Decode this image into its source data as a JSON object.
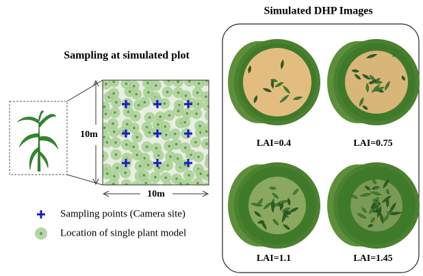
{
  "left": {
    "title": "Sampling at simulated plot",
    "height_label": "10m",
    "width_label": "10m",
    "legend": [
      "Sampling points (Camera site)",
      "Location of single plant model"
    ]
  },
  "right": {
    "title": "Simulated DHP Images",
    "images": [
      "LAI=0.4",
      "LAI=0.75",
      "LAI=1.1",
      "LAI=1.45"
    ]
  }
}
